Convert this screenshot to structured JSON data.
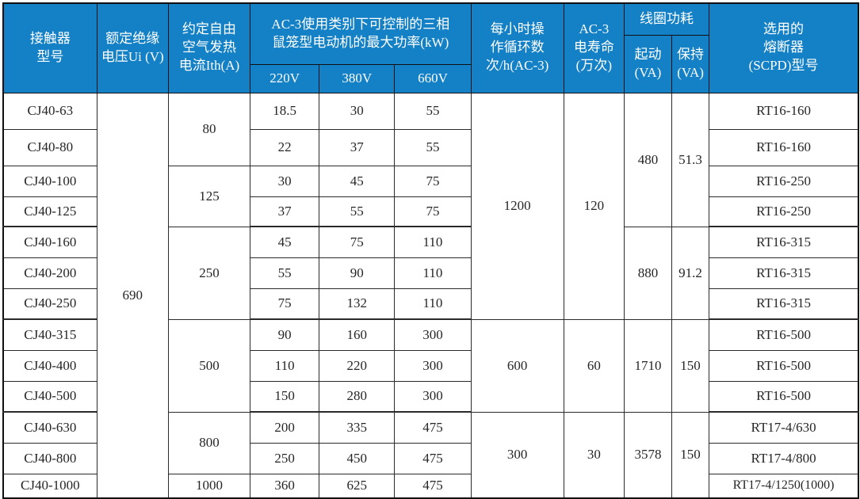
{
  "colors": {
    "header_bg": "#1480c5",
    "header_text": "#ffffff",
    "border": "#2a2a2a",
    "body_text": "#262626"
  },
  "table": {
    "header": {
      "contactor_model": "接触器\n型号",
      "rated_voltage": "额定绝缘\n电压Ui (V)",
      "thermal_current": "约定自由\n空气发热\n电流Ith(A)",
      "ac3_power": "AC-3使用类别下可控制的三相\n鼠笼型电动机的最大功率(kW)",
      "volt_220": "220V",
      "volt_380": "380V",
      "volt_660": "660V",
      "cycles_per_hour": "每小时操\n作循环数\n次/h(AC-3)",
      "electrical_life": "AC-3\n电寿命\n(万次)",
      "coil_power": "线圈功耗",
      "coil_start": "起动\n(VA)",
      "coil_hold": "保持\n(VA)",
      "fuse": "选用的\n熔断器\n(SCPD)型号"
    },
    "rated_voltage_value": "690",
    "rows": [
      {
        "model": "CJ40-63",
        "p220": "18.5",
        "p380": "30",
        "p660": "55",
        "fuse": "RT16-160"
      },
      {
        "model": "CJ40-80",
        "p220": "22",
        "p380": "37",
        "p660": "55",
        "fuse": "RT16-160"
      },
      {
        "model": "CJ40-100",
        "p220": "30",
        "p380": "45",
        "p660": "75",
        "fuse": "RT16-250"
      },
      {
        "model": "CJ40-125",
        "p220": "37",
        "p380": "55",
        "p660": "75",
        "fuse": "RT16-250"
      },
      {
        "model": "CJ40-160",
        "p220": "45",
        "p380": "75",
        "p660": "110",
        "fuse": "RT16-315"
      },
      {
        "model": "CJ40-200",
        "p220": "55",
        "p380": "90",
        "p660": "110",
        "fuse": "RT16-315"
      },
      {
        "model": "CJ40-250",
        "p220": "75",
        "p380": "132",
        "p660": "110",
        "fuse": "RT16-315"
      },
      {
        "model": "CJ40-315",
        "p220": "90",
        "p380": "160",
        "p660": "300",
        "fuse": "RT16-500"
      },
      {
        "model": "CJ40-400",
        "p220": "110",
        "p380": "220",
        "p660": "300",
        "fuse": "RT16-500"
      },
      {
        "model": "CJ40-500",
        "p220": "150",
        "p380": "280",
        "p660": "300",
        "fuse": "RT16-500"
      },
      {
        "model": "CJ40-630",
        "p220": "200",
        "p380": "335",
        "p660": "475",
        "fuse": "RT17-4/630"
      },
      {
        "model": "CJ40-800",
        "p220": "250",
        "p380": "450",
        "p660": "475",
        "fuse": "RT17-4/800"
      },
      {
        "model": "CJ40-1000",
        "p220": "360",
        "p380": "625",
        "p660": "475",
        "fuse": "RT17-4/1250(1000)"
      }
    ],
    "ith_groups": [
      {
        "value": "80",
        "span": 2
      },
      {
        "value": "125",
        "span": 2
      },
      {
        "value": "250",
        "span": 3
      },
      {
        "value": "500",
        "span": 3
      },
      {
        "value": "800",
        "span": 2
      },
      {
        "value": "1000",
        "span": 1
      }
    ],
    "cycle_groups": [
      {
        "cycles": "1200",
        "life": "120",
        "span": 7
      },
      {
        "cycles": "600",
        "life": "60",
        "span": 3
      },
      {
        "cycles": "300",
        "life": "30",
        "span": 3
      }
    ],
    "coil_groups": [
      {
        "start": "480",
        "hold": "51.3",
        "span": 4
      },
      {
        "start": "880",
        "hold": "91.2",
        "span": 3
      },
      {
        "start": "1710",
        "hold": "150",
        "span": 3
      },
      {
        "start": "3578",
        "hold": "150",
        "span": 3
      }
    ]
  }
}
